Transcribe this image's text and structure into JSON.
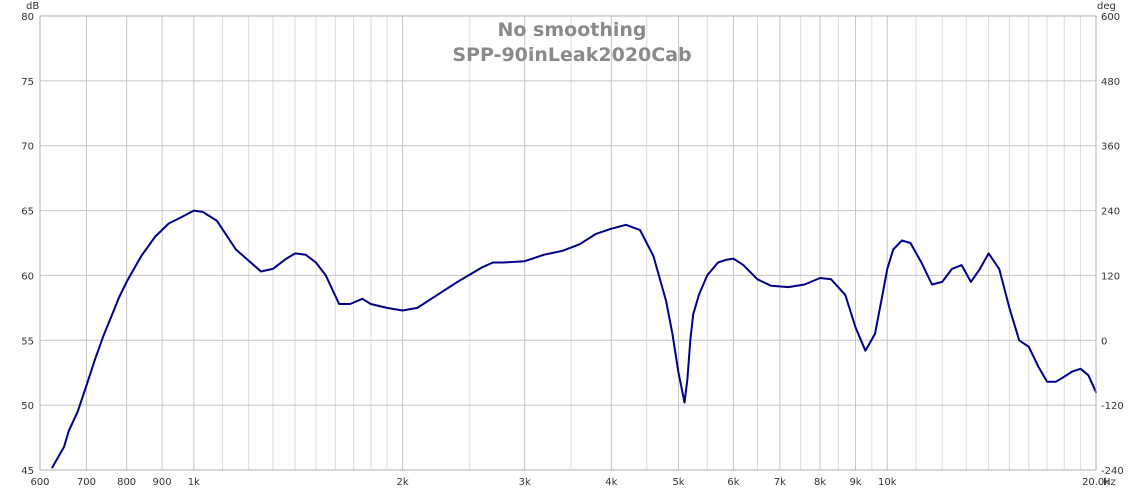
{
  "chart_data": {
    "type": "line",
    "title": "No smoothing",
    "subtitle": "SPP-90inLeak2020Cab",
    "xscale": "log",
    "xlim": [
      600,
      20000
    ],
    "ylim": [
      45,
      80
    ],
    "y2lim": [
      -240,
      600
    ],
    "left_unit": "dB",
    "right_unit": "deg",
    "x_unit": "Hz",
    "x_ticks": [
      {
        "v": 600,
        "label": "600"
      },
      {
        "v": 700,
        "label": "700"
      },
      {
        "v": 800,
        "label": "800"
      },
      {
        "v": 900,
        "label": "900"
      },
      {
        "v": 1000,
        "label": "1k"
      },
      {
        "v": 2000,
        "label": "2k"
      },
      {
        "v": 3000,
        "label": "3k"
      },
      {
        "v": 4000,
        "label": "4k"
      },
      {
        "v": 5000,
        "label": "5k"
      },
      {
        "v": 6000,
        "label": "6k"
      },
      {
        "v": 7000,
        "label": "7k"
      },
      {
        "v": 8000,
        "label": "8k"
      },
      {
        "v": 9000,
        "label": "9k"
      },
      {
        "v": 10000,
        "label": "10k"
      },
      {
        "v": 20000,
        "label": "20.0k"
      }
    ],
    "x_minor_ticks": [
      1100,
      1200,
      1300,
      1400,
      1500,
      1600,
      1700,
      1800,
      1900,
      2500,
      3500,
      4500,
      5500,
      6500,
      7500,
      8500,
      9500,
      11000,
      12000,
      13000,
      14000,
      15000,
      16000,
      17000,
      18000,
      19000
    ],
    "y_ticks": [
      45,
      50,
      55,
      60,
      65,
      70,
      75,
      80
    ],
    "y2_ticks": [
      -240,
      -120,
      0,
      120,
      240,
      360,
      480,
      600
    ],
    "grid": true,
    "line_color": "#00008b",
    "series": [
      {
        "x": [
          625,
          650,
          660,
          680,
          700,
          720,
          740,
          760,
          780,
          800,
          840,
          880,
          920,
          960,
          1000,
          1030,
          1080,
          1150,
          1250,
          1300,
          1360,
          1400,
          1450,
          1500,
          1550,
          1620,
          1680,
          1750,
          1800,
          1900,
          2000,
          2100,
          2200,
          2400,
          2600,
          2700,
          2800,
          3000,
          3200,
          3400,
          3600,
          3800,
          4000,
          4200,
          4400,
          4600,
          4800,
          4900,
          5000,
          5100,
          5150,
          5200,
          5250,
          5350,
          5500,
          5700,
          5850,
          6000,
          6200,
          6500,
          6800,
          7200,
          7600,
          8000,
          8300,
          8700,
          9000,
          9300,
          9600,
          9800,
          10000,
          10200,
          10500,
          10800,
          11200,
          11600,
          12000,
          12400,
          12800,
          13200,
          13600,
          14000,
          14500,
          15000,
          15500,
          16000,
          16500,
          17000,
          17500,
          18000,
          18500,
          19000,
          19500,
          20000
        ],
        "y": [
          45.2,
          46.8,
          48,
          49.5,
          51.5,
          53.5,
          55.3,
          56.8,
          58.3,
          59.5,
          61.5,
          63,
          64,
          64.5,
          65,
          64.9,
          64.2,
          62,
          60.3,
          60.5,
          61.3,
          61.7,
          61.6,
          61,
          60,
          57.8,
          57.8,
          58.2,
          57.8,
          57.5,
          57.3,
          57.5,
          58.2,
          59.5,
          60.6,
          61,
          61,
          61.1,
          61.6,
          61.9,
          62.4,
          63.2,
          63.6,
          63.9,
          63.5,
          61.5,
          58,
          55.5,
          52.5,
          50.2,
          52,
          55,
          57,
          58.5,
          60,
          61,
          61.2,
          61.3,
          60.8,
          59.7,
          59.2,
          59.1,
          59.3,
          59.8,
          59.7,
          58.5,
          56,
          54.2,
          55.5,
          58,
          60.5,
          62,
          62.7,
          62.5,
          61,
          59.3,
          59.5,
          60.5,
          60.8,
          59.5,
          60.5,
          61.7,
          60.5,
          57.5,
          55,
          54.5,
          53,
          51.8,
          51.8,
          52.2,
          52.6,
          52.8,
          52.3,
          51
        ]
      }
    ]
  }
}
